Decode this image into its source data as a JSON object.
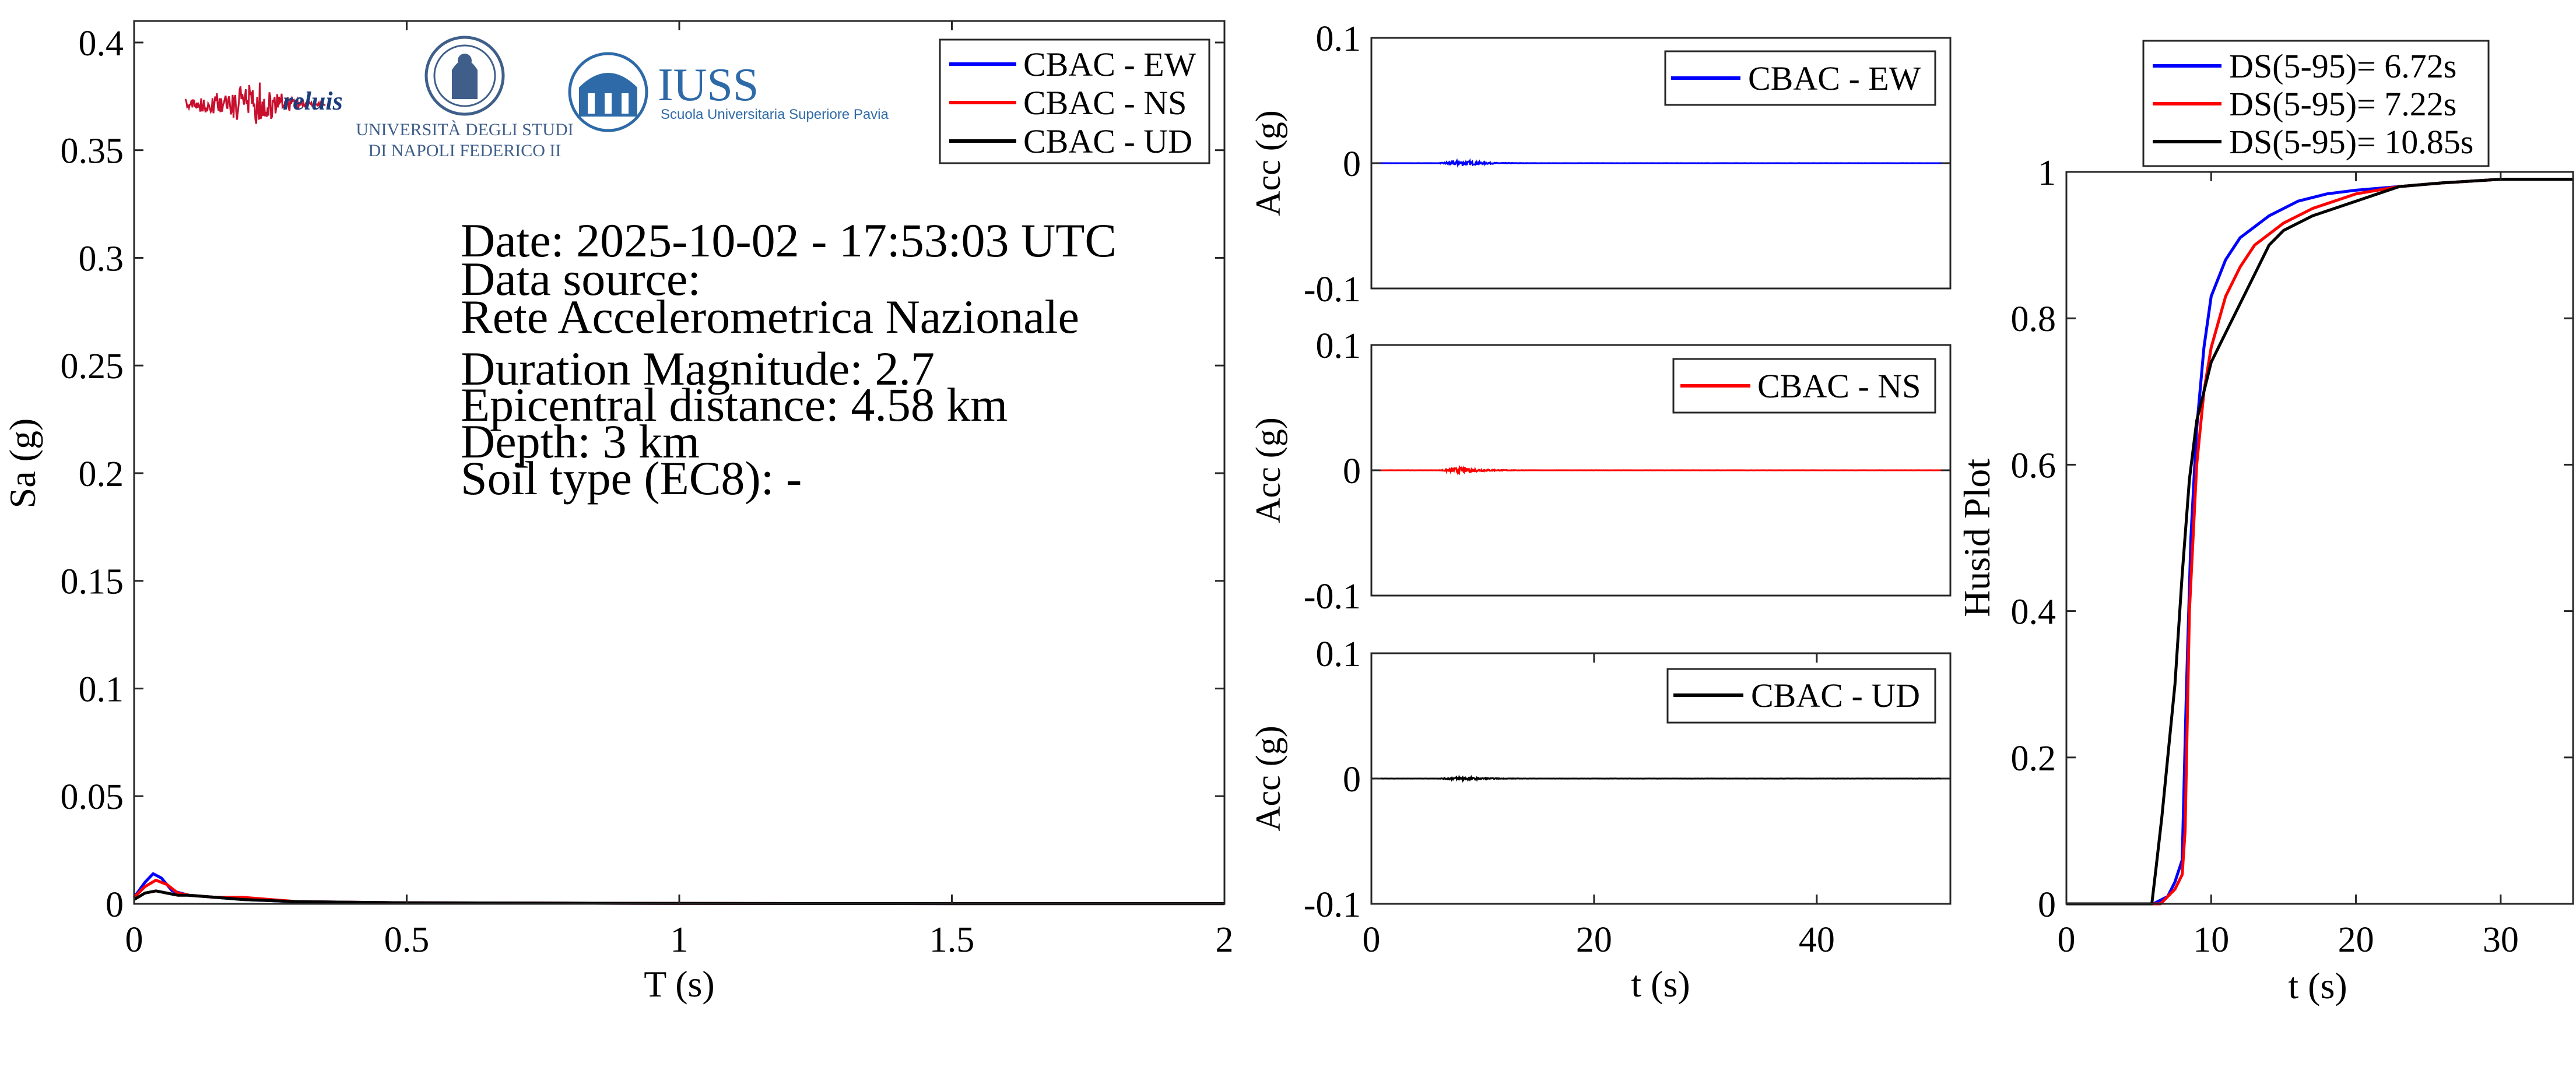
{
  "colors": {
    "ew": "#0000ff",
    "ns": "#ff0000",
    "ud": "#000000",
    "axis": "#262626",
    "background": "#ffffff"
  },
  "info_lines": [
    "Date: 2025-10-02 - 17:53:03 UTC",
    "Data source:",
    "Rete Accelerometrica Nazionale",
    "Duration Magnitude: 2.7",
    "Epicentral distance: 4.58 km",
    "Depth: 3 km",
    "Soil type (EC8): -"
  ],
  "logos": {
    "reluis": "reluis",
    "unina_line1": "UNIVERSITÀ DEGLI STUDI",
    "unina_line2": "DI NAPOLI FEDERICO II",
    "iuss_name": "IUSS",
    "iuss_sub": "Scuola Universitaria Superiore Pavia"
  },
  "chart_data": [
    {
      "id": "spectrum",
      "type": "line",
      "xlabel": "T (s)",
      "ylabel": "Sa (g)",
      "xlim": [
        0,
        2
      ],
      "ylim": [
        0,
        0.41
      ],
      "xticks": [
        0,
        0.5,
        1,
        1.5,
        2
      ],
      "xtick_labels": [
        "0",
        "0.5",
        "1",
        "1.5",
        "2"
      ],
      "yticks": [
        0,
        0.05,
        0.1,
        0.15,
        0.2,
        0.25,
        0.3,
        0.35,
        0.4
      ],
      "ytick_labels": [
        "0",
        "0.05",
        "0.1",
        "0.15",
        "0.2",
        "0.25",
        "0.3",
        "0.35",
        "0.4"
      ],
      "legend_position": "top-right",
      "series": [
        {
          "name": "CBAC - EW",
          "color": "#0000ff",
          "x": [
            0,
            0.02,
            0.035,
            0.05,
            0.07,
            0.1,
            0.15,
            0.2,
            0.3,
            0.5,
            1,
            1.5,
            2
          ],
          "y": [
            0.003,
            0.01,
            0.014,
            0.012,
            0.006,
            0.004,
            0.003,
            0.002,
            0.001,
            0.0005,
            0.0002,
            0.0001,
            0.0001
          ]
        },
        {
          "name": "CBAC - NS",
          "color": "#ff0000",
          "x": [
            0,
            0.02,
            0.04,
            0.06,
            0.08,
            0.1,
            0.15,
            0.2,
            0.25,
            0.3,
            0.5,
            1,
            1.5,
            2
          ],
          "y": [
            0.003,
            0.008,
            0.011,
            0.009,
            0.005,
            0.004,
            0.003,
            0.003,
            0.002,
            0.001,
            0.0005,
            0.0002,
            0.0001,
            0.0001
          ]
        },
        {
          "name": "CBAC - UD",
          "color": "#000000",
          "x": [
            0,
            0.02,
            0.04,
            0.06,
            0.08,
            0.1,
            0.15,
            0.2,
            0.3,
            0.5,
            1,
            1.5,
            2
          ],
          "y": [
            0.002,
            0.005,
            0.006,
            0.005,
            0.004,
            0.004,
            0.003,
            0.002,
            0.001,
            0.0005,
            0.0002,
            0.0001,
            0.0001
          ]
        }
      ]
    },
    {
      "id": "acc_ew",
      "type": "line",
      "xlabel": "",
      "ylabel": "Acc (g)",
      "xlim": [
        0,
        52
      ],
      "ylim": [
        -0.1,
        0.1
      ],
      "yticks": [
        -0.1,
        0,
        0.1
      ],
      "ytick_labels": [
        "-0.1",
        "0",
        "0.1"
      ],
      "legend_position": "top-right",
      "series": [
        {
          "name": "CBAC - EW",
          "color": "#0000ff",
          "amplitude": 0.0025,
          "event_start_s": 6,
          "peak_s": 8,
          "event_end_s": 16
        }
      ]
    },
    {
      "id": "acc_ns",
      "type": "line",
      "xlabel": "",
      "ylabel": "Acc (g)",
      "xlim": [
        0,
        52
      ],
      "ylim": [
        -0.1,
        0.1
      ],
      "yticks": [
        -0.1,
        0,
        0.1
      ],
      "ytick_labels": [
        "-0.1",
        "0",
        "0.1"
      ],
      "legend_position": "top-right",
      "series": [
        {
          "name": "CBAC - NS",
          "color": "#ff0000",
          "amplitude": 0.0025,
          "event_start_s": 6,
          "peak_s": 8,
          "event_end_s": 16
        }
      ]
    },
    {
      "id": "acc_ud",
      "type": "line",
      "xlabel": "t (s)",
      "ylabel": "Acc (g)",
      "xlim": [
        0,
        52
      ],
      "ylim": [
        -0.1,
        0.1
      ],
      "xticks": [
        0,
        20,
        40
      ],
      "xtick_labels": [
        "0",
        "20",
        "40"
      ],
      "yticks": [
        -0.1,
        0,
        0.1
      ],
      "ytick_labels": [
        "-0.1",
        "0",
        "0.1"
      ],
      "legend_position": "top-right",
      "series": [
        {
          "name": "CBAC - UD",
          "color": "#000000",
          "amplitude": 0.0015,
          "event_start_s": 6,
          "peak_s": 8,
          "event_end_s": 16
        }
      ]
    },
    {
      "id": "husid",
      "type": "line",
      "xlabel": "t (s)",
      "ylabel": "Husid Plot",
      "xlim": [
        0,
        35
      ],
      "ylim": [
        0,
        1
      ],
      "xticks": [
        0,
        10,
        20,
        30
      ],
      "xtick_labels": [
        "0",
        "10",
        "20",
        "30"
      ],
      "yticks": [
        0,
        0.2,
        0.4,
        0.6,
        0.8,
        1
      ],
      "ytick_labels": [
        "0",
        "0.2",
        "0.4",
        "0.6",
        "0.8",
        "1"
      ],
      "legend_position": "top (above axes)",
      "series": [
        {
          "name": "DS(5-95)= 6.72s",
          "color": "#0000ff",
          "x": [
            0,
            6,
            7,
            7.5,
            8,
            8.3,
            8.6,
            9,
            9.5,
            10,
            11,
            12,
            14,
            16,
            18,
            20,
            23,
            26,
            30,
            35
          ],
          "y": [
            0,
            0,
            0.01,
            0.03,
            0.06,
            0.3,
            0.5,
            0.65,
            0.76,
            0.83,
            0.88,
            0.91,
            0.94,
            0.96,
            0.97,
            0.975,
            0.98,
            0.985,
            0.99,
            0.99
          ]
        },
        {
          "name": "DS(5-95)= 7.22s",
          "color": "#ff0000",
          "x": [
            0,
            6.5,
            7.5,
            8,
            8.2,
            8.5,
            9,
            9.5,
            10,
            11,
            12,
            13,
            15,
            17,
            20,
            23,
            26,
            30,
            35
          ],
          "y": [
            0,
            0,
            0.02,
            0.04,
            0.1,
            0.4,
            0.6,
            0.7,
            0.76,
            0.83,
            0.87,
            0.9,
            0.93,
            0.95,
            0.97,
            0.98,
            0.985,
            0.99,
            0.99
          ]
        },
        {
          "name": "DS(5-95)= 10.85s",
          "color": "#000000",
          "x": [
            0,
            5.9,
            6.2,
            6.6,
            7,
            7.5,
            8,
            8.5,
            9,
            9.5,
            10,
            11,
            12,
            13,
            14,
            15,
            17,
            20,
            23,
            26,
            30,
            35
          ],
          "y": [
            0,
            0,
            0.05,
            0.12,
            0.2,
            0.3,
            0.45,
            0.58,
            0.66,
            0.7,
            0.74,
            0.78,
            0.82,
            0.86,
            0.9,
            0.92,
            0.94,
            0.96,
            0.98,
            0.985,
            0.99,
            0.99
          ]
        }
      ]
    }
  ]
}
